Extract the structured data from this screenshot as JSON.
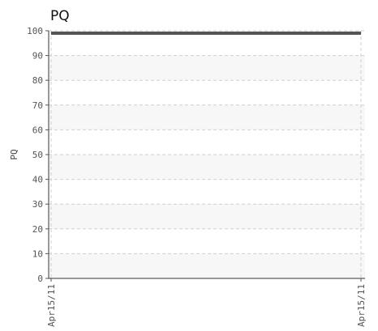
{
  "chart_data": {
    "type": "line",
    "title": "PQ",
    "xlabel": "",
    "ylabel": "PQ",
    "x": [
      "Apr15/11",
      "Apr15/11"
    ],
    "series": [
      {
        "values": [
          99,
          99
        ]
      }
    ],
    "ylim": [
      0,
      100
    ],
    "yticks": [
      0,
      10,
      20,
      30,
      40,
      50,
      60,
      70,
      80,
      90,
      100
    ],
    "xticks": [
      "Apr15/11",
      "Apr15/11"
    ],
    "grid": true,
    "series_color": "#555555"
  }
}
